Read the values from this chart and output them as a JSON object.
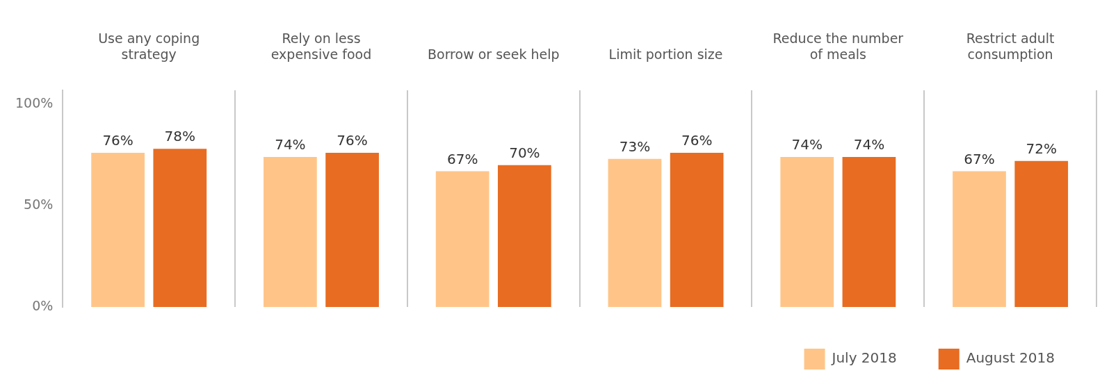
{
  "chart_data": {
    "type": "bar",
    "categories": [
      "Use any coping strategy",
      "Rely on less expensive food",
      "Borrow or seek help",
      "Limit portion size",
      "Reduce the number of meals",
      "Restrict adult consumption"
    ],
    "series": [
      {
        "name": "July 2018",
        "color": "#ffc588",
        "values": [
          76,
          74,
          67,
          73,
          74,
          67
        ],
        "value_labels": [
          "76%",
          "74%",
          "67%",
          "73%",
          "74%",
          "67%"
        ]
      },
      {
        "name": "August 2018",
        "color": "#e86c21",
        "values": [
          78,
          76,
          70,
          76,
          74,
          72
        ],
        "value_labels": [
          "78%",
          "76%",
          "70%",
          "76%",
          "74%",
          "72%"
        ]
      }
    ],
    "ylim": [
      0,
      107
    ],
    "yticks": [
      {
        "value": 0,
        "label": "0%"
      },
      {
        "value": 50,
        "label": "50%"
      },
      {
        "value": 100,
        "label": "100%"
      }
    ],
    "grid": "x",
    "legend": "bottom right"
  }
}
